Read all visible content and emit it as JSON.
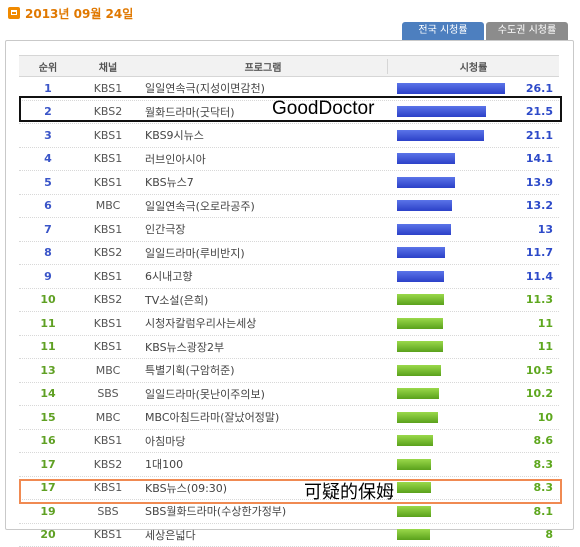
{
  "date": "2013년 09월 24일",
  "tabs": [
    {
      "label": "전국 시청률",
      "active": true
    },
    {
      "label": "수도권 시청률",
      "active": false
    }
  ],
  "headers": {
    "rank": "순위",
    "channel": "채널",
    "program": "프로그램",
    "rating": "시청률"
  },
  "max_rating": 28,
  "rows": [
    {
      "rank": "1",
      "channel": "KBS1",
      "program": "일일연속극(지성이면감천)",
      "rating": "26.1",
      "value": 26.1,
      "color": "blue"
    },
    {
      "rank": "2",
      "channel": "KBS2",
      "program": "월화드라마(굿닥터)",
      "rating": "21.5",
      "value": 21.5,
      "color": "blue"
    },
    {
      "rank": "3",
      "channel": "KBS1",
      "program": "KBS9시뉴스",
      "rating": "21.1",
      "value": 21.1,
      "color": "blue"
    },
    {
      "rank": "4",
      "channel": "KBS1",
      "program": "러브인아시아",
      "rating": "14.1",
      "value": 14.1,
      "color": "blue"
    },
    {
      "rank": "5",
      "channel": "KBS1",
      "program": "KBS뉴스7",
      "rating": "13.9",
      "value": 13.9,
      "color": "blue"
    },
    {
      "rank": "6",
      "channel": "MBC",
      "program": "일일연속극(오로라공주)",
      "rating": "13.2",
      "value": 13.2,
      "color": "blue"
    },
    {
      "rank": "7",
      "channel": "KBS1",
      "program": "인간극장",
      "rating": "13",
      "value": 13,
      "color": "blue"
    },
    {
      "rank": "8",
      "channel": "KBS2",
      "program": "일일드라마(루비반지)",
      "rating": "11.7",
      "value": 11.7,
      "color": "blue"
    },
    {
      "rank": "9",
      "channel": "KBS1",
      "program": "6시내고향",
      "rating": "11.4",
      "value": 11.4,
      "color": "blue"
    },
    {
      "rank": "10",
      "channel": "KBS2",
      "program": "TV소설(은희)",
      "rating": "11.3",
      "value": 11.3,
      "color": "green"
    },
    {
      "rank": "11",
      "channel": "KBS1",
      "program": "시청자칼럼우리사는세상",
      "rating": "11",
      "value": 11,
      "color": "green"
    },
    {
      "rank": "11",
      "channel": "KBS1",
      "program": "KBS뉴스광장2부",
      "rating": "11",
      "value": 11,
      "color": "green"
    },
    {
      "rank": "13",
      "channel": "MBC",
      "program": "특별기획(구암허준)",
      "rating": "10.5",
      "value": 10.5,
      "color": "green"
    },
    {
      "rank": "14",
      "channel": "SBS",
      "program": "일일드라마(못난이주의보)",
      "rating": "10.2",
      "value": 10.2,
      "color": "green"
    },
    {
      "rank": "15",
      "channel": "MBC",
      "program": "MBC아침드라마(잘났어정말)",
      "rating": "10",
      "value": 10,
      "color": "green"
    },
    {
      "rank": "16",
      "channel": "KBS1",
      "program": "아침마당",
      "rating": "8.6",
      "value": 8.6,
      "color": "green"
    },
    {
      "rank": "17",
      "channel": "KBS2",
      "program": "1대100",
      "rating": "8.3",
      "value": 8.3,
      "color": "green"
    },
    {
      "rank": "17",
      "channel": "KBS1",
      "program": "KBS뉴스(09:30)",
      "rating": "8.3",
      "value": 8.3,
      "color": "green"
    },
    {
      "rank": "19",
      "channel": "SBS",
      "program": "SBS월화드라마(수상한가정부)",
      "rating": "8.1",
      "value": 8.1,
      "color": "green"
    },
    {
      "rank": "20",
      "channel": "KBS1",
      "program": "세상은넓다",
      "rating": "8",
      "value": 8,
      "color": "green"
    }
  ],
  "annotations": {
    "gooddoctor": "GoodDoctor",
    "suspicious": "可疑的保姆"
  },
  "colors": {
    "blue": "#2c41c8",
    "green": "#5aa11c",
    "orange": "#e07800",
    "highlight_orange": "#f08a52"
  }
}
